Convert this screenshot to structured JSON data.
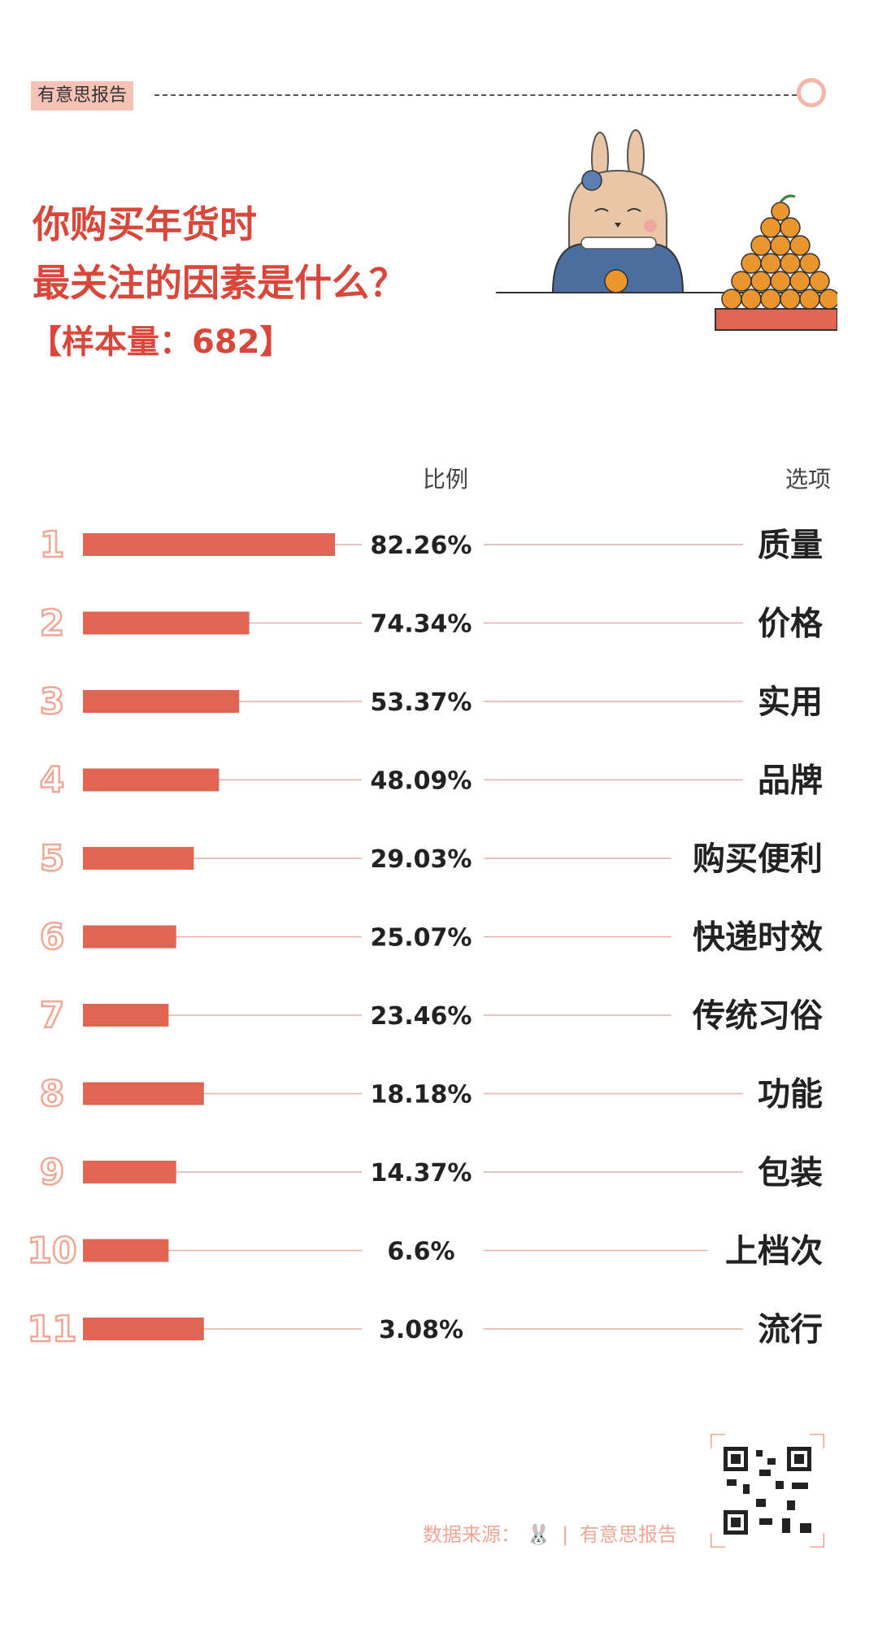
{
  "header": {
    "tag": "有意思报告",
    "title_line1": "你购买年货时",
    "title_line2": "最关注的因素是什么？",
    "sample": "【样本量：682】",
    "col_ratio": "比例",
    "col_option": "选项"
  },
  "colors": {
    "accent": "#d9473a",
    "bar": "#e06552",
    "rank": "#f0a796",
    "tag_bg": "#f6c2b5"
  },
  "chart_data": {
    "type": "bar",
    "orientation": "horizontal",
    "ranks": [
      "1",
      "2",
      "3",
      "4",
      "5",
      "6",
      "7",
      "8",
      "9",
      "10",
      "11"
    ],
    "categories": [
      "质量",
      "价格",
      "实用",
      "品牌",
      "购买便利",
      "快递时效",
      "传统习俗",
      "功能",
      "包装",
      "上档次",
      "流行"
    ],
    "values": [
      82.26,
      74.34,
      53.37,
      48.09,
      29.03,
      25.07,
      23.46,
      18.18,
      14.37,
      6.6,
      3.08
    ],
    "value_labels": [
      "82.26%",
      "74.34%",
      "53.37%",
      "48.09%",
      "29.03%",
      "25.07%",
      "23.46%",
      "18.18%",
      "14.37%",
      "6.6%",
      "3.08%"
    ],
    "bar_fill_fraction": [
      1.0,
      0.66,
      0.62,
      0.54,
      0.44,
      0.37,
      0.34,
      0.48,
      0.37,
      0.34,
      0.48
    ]
  },
  "footer": {
    "source_label": "数据来源：",
    "source_name": "有意思报告"
  }
}
